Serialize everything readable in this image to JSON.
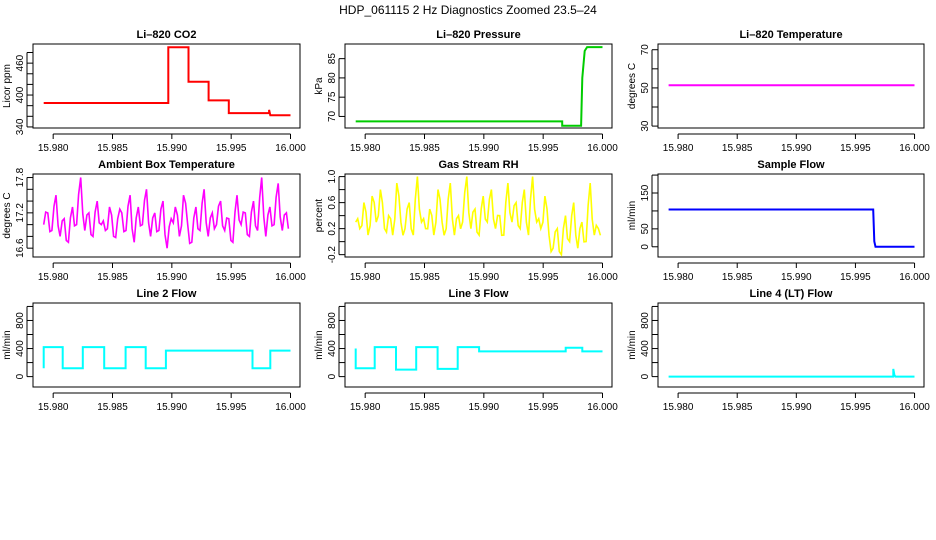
{
  "title": "HDP_061115  2 Hz Diagnostics Zoomed 23.5–24",
  "chart_data": [
    {
      "type": "line",
      "title": "Li–820 CO2",
      "xlabel": "",
      "ylabel": "Licor ppm",
      "color": "#ff0000",
      "xlim": [
        15.9783,
        16.0008
      ],
      "xticks": [
        "15.980",
        "15.985",
        "15.990",
        "15.995",
        "16.000"
      ],
      "ylim": [
        338,
        496
      ],
      "yticks": [
        340,
        360,
        380,
        400,
        420,
        440,
        460,
        480
      ],
      "ytick_labels": [
        "340",
        "400",
        "460"
      ],
      "points": [
        [
          15.9792,
          385
        ],
        [
          15.9897,
          385
        ],
        [
          15.9897,
          490
        ],
        [
          15.9914,
          490
        ],
        [
          15.9914,
          425
        ],
        [
          15.9931,
          425
        ],
        [
          15.9931,
          390
        ],
        [
          15.9948,
          390
        ],
        [
          15.9948,
          366
        ],
        [
          15.9982,
          366
        ],
        [
          15.9982,
          372
        ],
        [
          15.9983,
          362
        ],
        [
          16.0,
          362
        ]
      ]
    },
    {
      "type": "line",
      "title": "Li–820 Pressure",
      "xlabel": "",
      "ylabel": "kPa",
      "color": "#00cc00",
      "xlim": [
        15.9783,
        16.0008
      ],
      "xticks": [
        "15.980",
        "15.985",
        "15.990",
        "15.995",
        "16.000"
      ],
      "ylim": [
        67,
        88.8
      ],
      "yticks": [
        70,
        75,
        80,
        85
      ],
      "ytick_labels": [
        "70",
        "75",
        "80",
        "85"
      ],
      "points": [
        [
          15.9792,
          68.7
        ],
        [
          15.9966,
          68.7
        ],
        [
          15.9966,
          67.6
        ],
        [
          15.9982,
          67.6
        ],
        [
          15.9983,
          80
        ],
        [
          15.9985,
          87
        ],
        [
          15.9987,
          88
        ],
        [
          16.0,
          88
        ]
      ]
    },
    {
      "type": "line",
      "title": "Li–820 Temperature",
      "xlabel": "",
      "ylabel": "degrees C",
      "color": "#ff00ff",
      "xlim": [
        15.9783,
        16.0008
      ],
      "xticks": [
        "15.980",
        "15.985",
        "15.990",
        "15.995",
        "16.000"
      ],
      "ylim": [
        29,
        73
      ],
      "yticks": [
        30,
        40,
        50,
        60,
        70
      ],
      "ytick_labels": [
        "30",
        "50",
        "70"
      ],
      "points": [
        [
          15.9792,
          51.4
        ],
        [
          16.0,
          51.4
        ]
      ]
    },
    {
      "type": "line",
      "title": "Ambient Box Temperature",
      "xlabel": "",
      "ylabel": "degrees C",
      "color": "#ff00ff",
      "xlim": [
        15.9783,
        16.0008
      ],
      "xticks": [
        "15.980",
        "15.985",
        "15.990",
        "15.995",
        "16.000"
      ],
      "ylim": [
        16.45,
        17.86
      ],
      "yticks": [
        16.6,
        16.8,
        17.0,
        17.2,
        17.4,
        17.6,
        17.8
      ],
      "ytick_labels": [
        "16.6",
        "17.2",
        "17.8"
      ],
      "x_range": [
        15.9792,
        16.0
      ],
      "values": [
        17.0,
        17.2,
        16.9,
        17.5,
        16.8,
        17.1,
        16.7,
        17.3,
        17.0,
        17.8,
        16.9,
        17.2,
        16.8,
        17.4,
        17.0,
        16.9,
        17.3,
        16.8,
        17.1,
        17.2,
        16.9,
        17.5,
        16.7,
        17.3,
        17.0,
        17.6,
        16.8,
        17.2,
        16.9,
        17.4,
        16.6,
        17.1,
        17.3,
        16.8,
        17.5,
        17.0,
        16.7,
        17.3,
        16.9,
        17.6,
        16.8,
        17.2,
        17.0,
        17.4,
        16.9,
        17.1,
        16.7,
        17.5,
        17.0,
        17.2,
        16.8,
        17.4,
        16.9,
        17.8,
        16.8,
        17.3,
        17.0,
        17.7,
        16.9,
        17.2
      ]
    },
    {
      "type": "line",
      "title": "Gas Stream RH",
      "xlabel": "",
      "ylabel": "percent",
      "color": "#ffff00",
      "xlim": [
        15.9783,
        16.0008
      ],
      "xticks": [
        "15.980",
        "15.985",
        "15.990",
        "15.995",
        "16.000"
      ],
      "ylim": [
        -0.236,
        1.04
      ],
      "yticks": [
        -0.2,
        0,
        0.2,
        0.4,
        0.6,
        0.8,
        1.0
      ],
      "ytick_labels": [
        "-0.2",
        "0.2",
        "0.6",
        "1.0"
      ],
      "x_range": [
        15.9792,
        16.0
      ],
      "values": [
        0.3,
        0.2,
        0.6,
        0.1,
        0.7,
        0.3,
        0.8,
        0.2,
        0.4,
        0.1,
        0.9,
        0.3,
        0.2,
        0.6,
        0.1,
        1.0,
        0.3,
        0.2,
        0.5,
        0.1,
        0.8,
        0.3,
        0.2,
        0.9,
        0.1,
        0.4,
        0.3,
        1.0,
        0.2,
        0.5,
        0.1,
        0.7,
        0.3,
        0.8,
        0.2,
        0.4,
        0.1,
        0.9,
        0.3,
        0.6,
        0.2,
        0.8,
        0.1,
        1.0,
        0.3,
        0.2,
        0.7,
        0.1,
        -0.1,
        0.2,
        -0.2,
        0.4,
        0.0,
        0.6,
        -0.1,
        0.3,
        0.0,
        0.9,
        0.1,
        0.2
      ]
    },
    {
      "type": "line",
      "title": "Sample Flow",
      "xlabel": "",
      "ylabel": "ml/min",
      "color": "#0000ff",
      "xlim": [
        15.9783,
        16.0008
      ],
      "xticks": [
        "15.980",
        "15.985",
        "15.990",
        "15.995",
        "16.000"
      ],
      "ylim": [
        -28.5,
        203
      ],
      "yticks": [
        0,
        50,
        100,
        150,
        200
      ],
      "ytick_labels": [
        "0",
        "50",
        "150"
      ],
      "points": [
        [
          15.9792,
          104
        ],
        [
          15.9965,
          104
        ],
        [
          15.9966,
          15
        ],
        [
          15.9967,
          0
        ],
        [
          16.0,
          0
        ]
      ]
    },
    {
      "type": "line",
      "title": "Line 2 Flow",
      "xlabel": "",
      "ylabel": "ml/min",
      "color": "#00ffff",
      "xlim": [
        15.9783,
        16.0008
      ],
      "xticks": [
        "15.980",
        "15.985",
        "15.990",
        "15.995",
        "16.000"
      ],
      "ylim": [
        -148,
        1049
      ],
      "yticks": [
        0,
        200,
        400,
        600,
        800,
        1000
      ],
      "ytick_labels": [
        "0",
        "400",
        "800"
      ],
      "points": [
        [
          15.9792,
          120
        ],
        [
          15.9792,
          420
        ],
        [
          15.9808,
          420
        ],
        [
          15.9808,
          120
        ],
        [
          15.9825,
          120
        ],
        [
          15.9825,
          420
        ],
        [
          15.9843,
          420
        ],
        [
          15.9843,
          120
        ],
        [
          15.9861,
          120
        ],
        [
          15.9861,
          420
        ],
        [
          15.9878,
          420
        ],
        [
          15.9878,
          120
        ],
        [
          15.9895,
          120
        ],
        [
          15.9895,
          370
        ],
        [
          15.9968,
          370
        ],
        [
          15.9968,
          120
        ],
        [
          15.9983,
          120
        ],
        [
          15.9983,
          370
        ],
        [
          16.0,
          370
        ]
      ]
    },
    {
      "type": "line",
      "title": "Line 3 Flow",
      "xlabel": "",
      "ylabel": "ml/min",
      "color": "#00ffff",
      "xlim": [
        15.9783,
        16.0008
      ],
      "xticks": [
        "15.980",
        "15.985",
        "15.990",
        "15.995",
        "16.000"
      ],
      "ylim": [
        -148,
        1049
      ],
      "yticks": [
        0,
        200,
        400,
        600,
        800,
        1000
      ],
      "ytick_labels": [
        "0",
        "400",
        "800"
      ],
      "points": [
        [
          15.9792,
          400
        ],
        [
          15.9792,
          120
        ],
        [
          15.9808,
          120
        ],
        [
          15.9808,
          420
        ],
        [
          15.9826,
          420
        ],
        [
          15.9826,
          100
        ],
        [
          15.9843,
          100
        ],
        [
          15.9843,
          420
        ],
        [
          15.9861,
          420
        ],
        [
          15.9861,
          110
        ],
        [
          15.9878,
          110
        ],
        [
          15.9878,
          420
        ],
        [
          15.9896,
          420
        ],
        [
          15.9896,
          360
        ],
        [
          15.9969,
          360
        ],
        [
          15.9969,
          410
        ],
        [
          15.9983,
          410
        ],
        [
          15.9983,
          360
        ],
        [
          16.0,
          360
        ]
      ]
    },
    {
      "type": "line",
      "title": "Line 4 (LT) Flow",
      "xlabel": "",
      "ylabel": "ml/min",
      "color": "#00ffff",
      "xlim": [
        15.9783,
        16.0008
      ],
      "xticks": [
        "15.980",
        "15.985",
        "15.990",
        "15.995",
        "16.000"
      ],
      "ylim": [
        -148,
        1049
      ],
      "yticks": [
        0,
        200,
        400,
        600,
        800,
        1000
      ],
      "ytick_labels": [
        "0",
        "400",
        "800"
      ],
      "points": [
        [
          15.9792,
          0
        ],
        [
          15.9982,
          0
        ],
        [
          15.9982,
          110
        ],
        [
          15.9983,
          20
        ],
        [
          15.9984,
          0
        ],
        [
          16.0,
          0
        ]
      ]
    }
  ]
}
